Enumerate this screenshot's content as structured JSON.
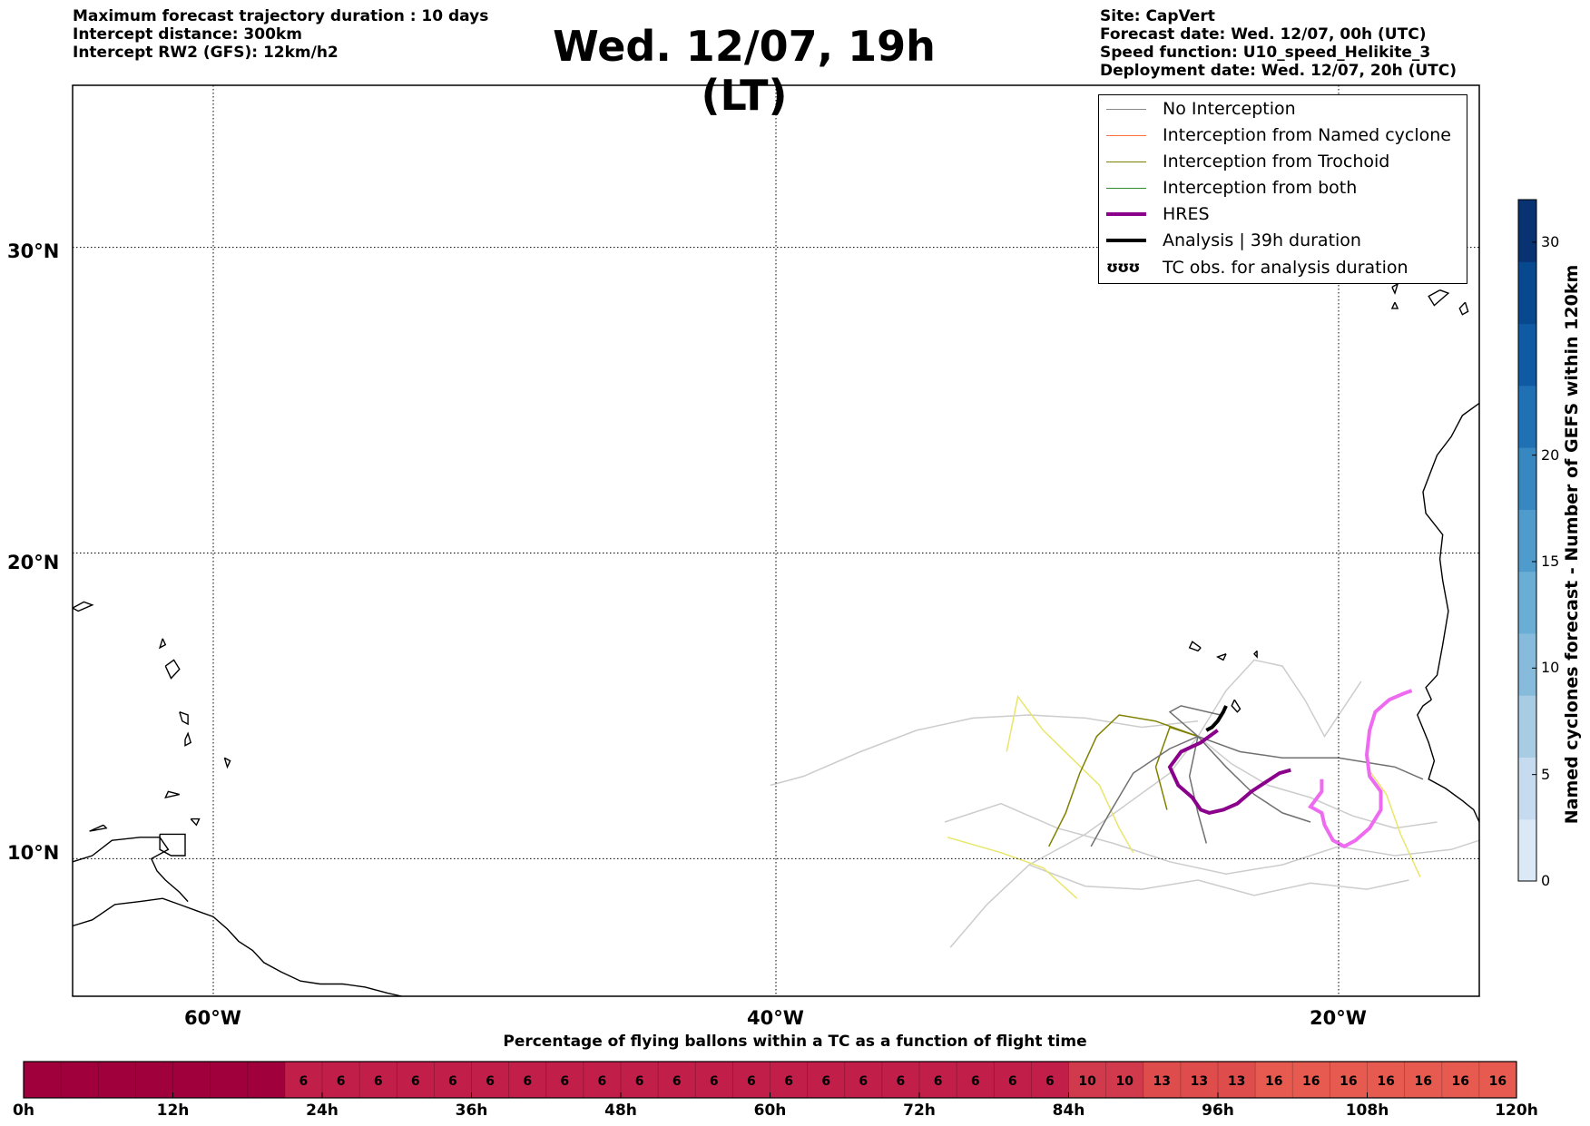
{
  "header": {
    "left_lines": [
      "Maximum forecast trajectory duration : 10 days",
      "Intercept distance: 300km",
      "Intercept RW2 (GFS):  12km/h2"
    ],
    "title": "Wed. 12/07, 19h (LT)",
    "right_lines": [
      "Site: CapVert",
      "Forecast date: Wed. 12/07, 00h (UTC)",
      "Speed function: U10_speed_Helikite_3",
      "Deployment date: Wed. 12/07, 20h (UTC)"
    ]
  },
  "map": {
    "extent": {
      "lon_min": -65,
      "lon_max": -15,
      "lat_min": 5.5,
      "lat_max": 35.3
    },
    "lat_gridlines": [
      10,
      20,
      30
    ],
    "lon_gridlines": [
      -60,
      -40,
      -20
    ],
    "lat_labels": [
      "10°N",
      "20°N",
      "30°N"
    ],
    "lon_labels": [
      "60°W",
      "40°W",
      "20°W"
    ],
    "grid": true
  },
  "legend": {
    "items": [
      {
        "label": "No Interception",
        "color": "#888888",
        "width": 1.2
      },
      {
        "label": "Interception from Named cyclone",
        "color": "#ff7043",
        "width": 1.2
      },
      {
        "label": "Interception from Trochoid",
        "color": "#808000",
        "width": 1.2
      },
      {
        "label": "Interception from both",
        "color": "#2e8b2e",
        "width": 1.2
      },
      {
        "label": "HRES",
        "color": "#8b008b",
        "width": 4
      },
      {
        "label": "Analysis | 39h duration",
        "color": "#000000",
        "width": 4
      },
      {
        "label": "TC obs. for analysis duration",
        "symbol": "ʊʊʊ"
      }
    ]
  },
  "colorbar": {
    "title": "Named cyclones forecast - Number of GEFS within 120km",
    "min": 0,
    "max": 32,
    "ticks": [
      0,
      5,
      10,
      15,
      20,
      30
    ],
    "colors": [
      "#dbe9f6",
      "#c6dbef",
      "#a8cce4",
      "#86bbdc",
      "#6aaed6",
      "#4f9bcb",
      "#3787c0",
      "#2070b4",
      "#0f5aa3",
      "#08488e",
      "#083272"
    ]
  },
  "bottom_bar": {
    "title": "Percentage of flying ballons within a TC as a function of flight time",
    "ticks": [
      "0h",
      "12h",
      "24h",
      "36h",
      "48h",
      "60h",
      "72h",
      "84h",
      "96h",
      "108h",
      "120h"
    ],
    "segment_hours": 3,
    "values": [
      0,
      0,
      0,
      0,
      0,
      0,
      0,
      6,
      6,
      6,
      6,
      6,
      6,
      6,
      6,
      6,
      6,
      6,
      6,
      6,
      6,
      6,
      6,
      6,
      6,
      6,
      6,
      6,
      10,
      10,
      13,
      13,
      13,
      16,
      16,
      16,
      16,
      16,
      16,
      16
    ],
    "colors": {
      "0": "#a0003c",
      "6": "#c11e49",
      "10": "#d03a4c",
      "13": "#de4c4b",
      "16": "#e65a4f"
    }
  },
  "tracks": {
    "hres": [
      [
        -24.3,
        14.2
      ],
      [
        -24.9,
        13.8
      ],
      [
        -25.6,
        13.5
      ],
      [
        -26.0,
        13.0
      ],
      [
        -25.7,
        12.4
      ],
      [
        -25.2,
        12.0
      ],
      [
        -24.9,
        11.6
      ],
      [
        -24.6,
        11.5
      ],
      [
        -24.1,
        11.6
      ],
      [
        -23.6,
        11.8
      ],
      [
        -23.1,
        12.2
      ],
      [
        -22.6,
        12.5
      ],
      [
        -22.1,
        12.8
      ],
      [
        -21.7,
        12.9
      ]
    ],
    "analysis": [
      [
        -24.0,
        15.0
      ],
      [
        -24.1,
        14.8
      ],
      [
        -24.3,
        14.5
      ],
      [
        -24.5,
        14.3
      ],
      [
        -24.7,
        14.2
      ]
    ],
    "tc_obs_pink": [
      [
        -17.4,
        15.5
      ],
      [
        -17.7,
        15.4
      ],
      [
        -18.2,
        15.2
      ],
      [
        -18.7,
        14.8
      ],
      [
        -18.9,
        14.2
      ],
      [
        -19.0,
        13.4
      ],
      [
        -18.9,
        12.7
      ],
      [
        -18.5,
        12.2
      ],
      [
        -18.5,
        11.6
      ],
      [
        -18.9,
        11.0
      ],
      [
        -19.4,
        10.6
      ],
      [
        -19.8,
        10.4
      ],
      [
        -20.2,
        10.6
      ],
      [
        -20.5,
        11.1
      ],
      [
        -20.6,
        11.5
      ],
      [
        -21.0,
        11.7
      ],
      [
        -20.6,
        12.2
      ],
      [
        -20.6,
        12.6
      ]
    ]
  }
}
